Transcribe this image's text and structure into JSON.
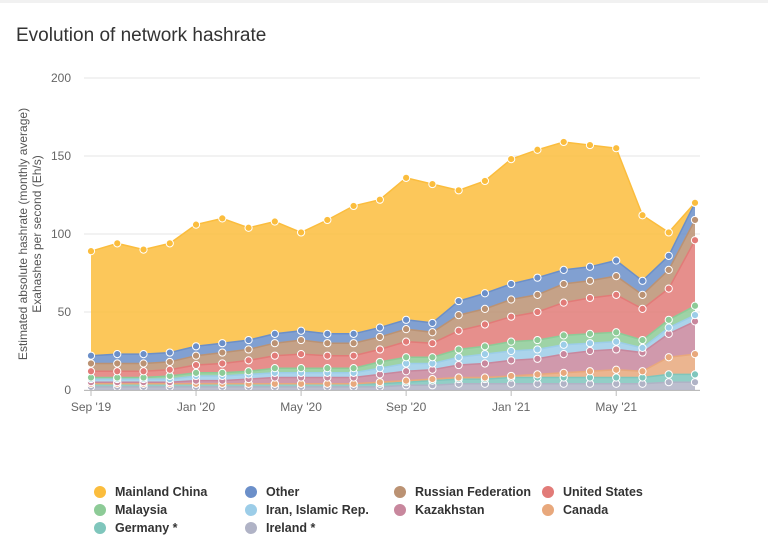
{
  "chart_data": {
    "type": "area",
    "stacked": true,
    "title": "Evolution of network hashrate",
    "ylabel": [
      "Estimated absolute hashrate (monthly average)",
      "Exahashes per second (Eh/s)"
    ],
    "xlabel": "",
    "ylim": [
      0,
      200
    ],
    "yticks": [
      "0",
      "50",
      "100",
      "150",
      "200"
    ],
    "xtick_labels": [
      "Sep '19",
      "Jan '20",
      "May '20",
      "Sep '20",
      "Jan '21",
      "May '21"
    ],
    "x": [
      "2019-09",
      "2019-10",
      "2019-11",
      "2019-12",
      "2020-01",
      "2020-02",
      "2020-03",
      "2020-04",
      "2020-05",
      "2020-06",
      "2020-07",
      "2020-08",
      "2020-09",
      "2020-10",
      "2020-11",
      "2020-12",
      "2021-01",
      "2021-02",
      "2021-03",
      "2021-04",
      "2021-05",
      "2021-06",
      "2021-07",
      "2021-08"
    ],
    "grid": true,
    "legend_position": "bottom",
    "series": [
      {
        "name": "Ireland *",
        "color": "#b0b3c6",
        "values": [
          2,
          2,
          2,
          2,
          2,
          2,
          2,
          2,
          2,
          2,
          2,
          2,
          3,
          3,
          4,
          4,
          4,
          4,
          4,
          4,
          4,
          4,
          5,
          5
        ]
      },
      {
        "name": "Germany *",
        "color": "#7fc6bc",
        "values": [
          2,
          2,
          2,
          2,
          2,
          2,
          2,
          2,
          2,
          2,
          2,
          2,
          2,
          3,
          3,
          3,
          4,
          4,
          4,
          4,
          4,
          4,
          5,
          5
        ]
      },
      {
        "name": "Canada",
        "color": "#e8a87c",
        "values": [
          0,
          0,
          0,
          0,
          0,
          0,
          0,
          0,
          0,
          0,
          0,
          1,
          1,
          1,
          1,
          1,
          1,
          2,
          3,
          4,
          5,
          4,
          11,
          13
        ]
      },
      {
        "name": "Kazakhstan",
        "color": "#c8879d",
        "values": [
          1,
          1,
          1,
          1,
          2,
          2,
          3,
          4,
          4,
          4,
          4,
          5,
          6,
          6,
          8,
          9,
          10,
          10,
          12,
          13,
          13,
          12,
          15,
          21
        ]
      },
      {
        "name": "Iran, Islamic Rep.",
        "color": "#9ccde8",
        "values": [
          2,
          2,
          2,
          2,
          3,
          3,
          3,
          3,
          3,
          3,
          3,
          4,
          5,
          4,
          5,
          6,
          6,
          6,
          6,
          5,
          5,
          3,
          4,
          4
        ]
      },
      {
        "name": "Malaysia",
        "color": "#8dcb97",
        "values": [
          1,
          1,
          1,
          2,
          2,
          2,
          2,
          3,
          3,
          3,
          3,
          4,
          4,
          4,
          5,
          5,
          6,
          6,
          6,
          6,
          6,
          5,
          5,
          6
        ]
      },
      {
        "name": "United States",
        "color": "#e27b78",
        "values": [
          4,
          4,
          4,
          4,
          5,
          6,
          7,
          8,
          9,
          8,
          8,
          8,
          10,
          9,
          12,
          14,
          16,
          18,
          21,
          23,
          24,
          20,
          20,
          42
        ]
      },
      {
        "name": "Russian Federation",
        "color": "#bb9273",
        "values": [
          5,
          5,
          5,
          5,
          6,
          7,
          7,
          8,
          9,
          8,
          8,
          8,
          8,
          7,
          10,
          10,
          11,
          11,
          12,
          11,
          12,
          9,
          12,
          13
        ]
      },
      {
        "name": "Other",
        "color": "#6b8fc9",
        "values": [
          5,
          6,
          6,
          6,
          6,
          6,
          6,
          6,
          6,
          6,
          6,
          6,
          6,
          6,
          9,
          10,
          10,
          11,
          9,
          9,
          10,
          9,
          9,
          11
        ]
      },
      {
        "name": "Mainland China",
        "color": "#fbbd3d",
        "values": [
          67,
          71,
          67,
          70,
          78,
          80,
          72,
          72,
          63,
          73,
          82,
          82,
          91,
          89,
          71,
          72,
          80,
          82,
          82,
          78,
          72,
          42,
          15,
          0
        ]
      }
    ]
  },
  "legend_order": [
    "Mainland China",
    "Other",
    "Russian Federation",
    "United States",
    "Malaysia",
    "Iran, Islamic Rep.",
    "Kazakhstan",
    "Canada",
    "Germany *",
    "Ireland *"
  ]
}
